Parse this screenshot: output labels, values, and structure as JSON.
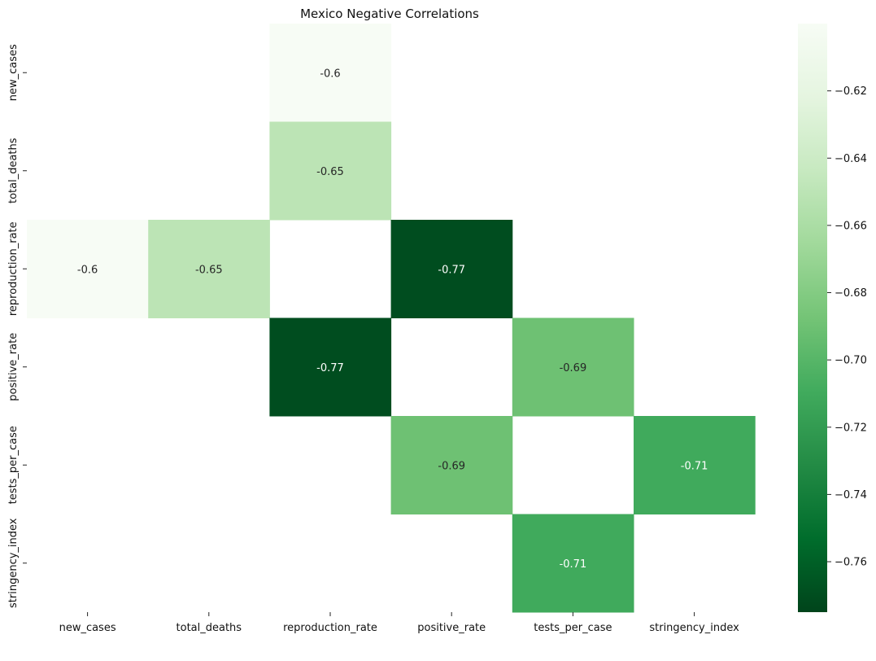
{
  "chart_data": {
    "type": "heatmap",
    "title": "Mexico Negative Correlations",
    "x_labels": [
      "new_cases",
      "total_deaths",
      "reproduction_rate",
      "positive_rate",
      "tests_per_case",
      "stringency_index"
    ],
    "y_labels": [
      "new_cases",
      "total_deaths",
      "reproduction_rate",
      "positive_rate",
      "tests_per_case",
      "stringency_index"
    ],
    "matrix": [
      [
        null,
        null,
        -0.6,
        null,
        null,
        null
      ],
      [
        null,
        null,
        -0.65,
        null,
        null,
        null
      ],
      [
        -0.6,
        -0.65,
        null,
        -0.77,
        null,
        null
      ],
      [
        null,
        null,
        -0.77,
        null,
        -0.69,
        null
      ],
      [
        null,
        null,
        null,
        -0.69,
        null,
        -0.71
      ],
      [
        null,
        null,
        null,
        null,
        -0.71,
        null
      ]
    ],
    "colormap": "Greens_r",
    "vmin": -0.775,
    "vmax": -0.6,
    "colorbar_ticks": [
      -0.62,
      -0.64,
      -0.66,
      -0.68,
      -0.7,
      -0.72,
      -0.74,
      -0.76
    ],
    "colorbar_tick_labels": [
      "−0.62",
      "−0.64",
      "−0.66",
      "−0.68",
      "−0.70",
      "−0.72",
      "−0.74",
      "−0.76"
    ],
    "legend": "colorbar-right"
  }
}
